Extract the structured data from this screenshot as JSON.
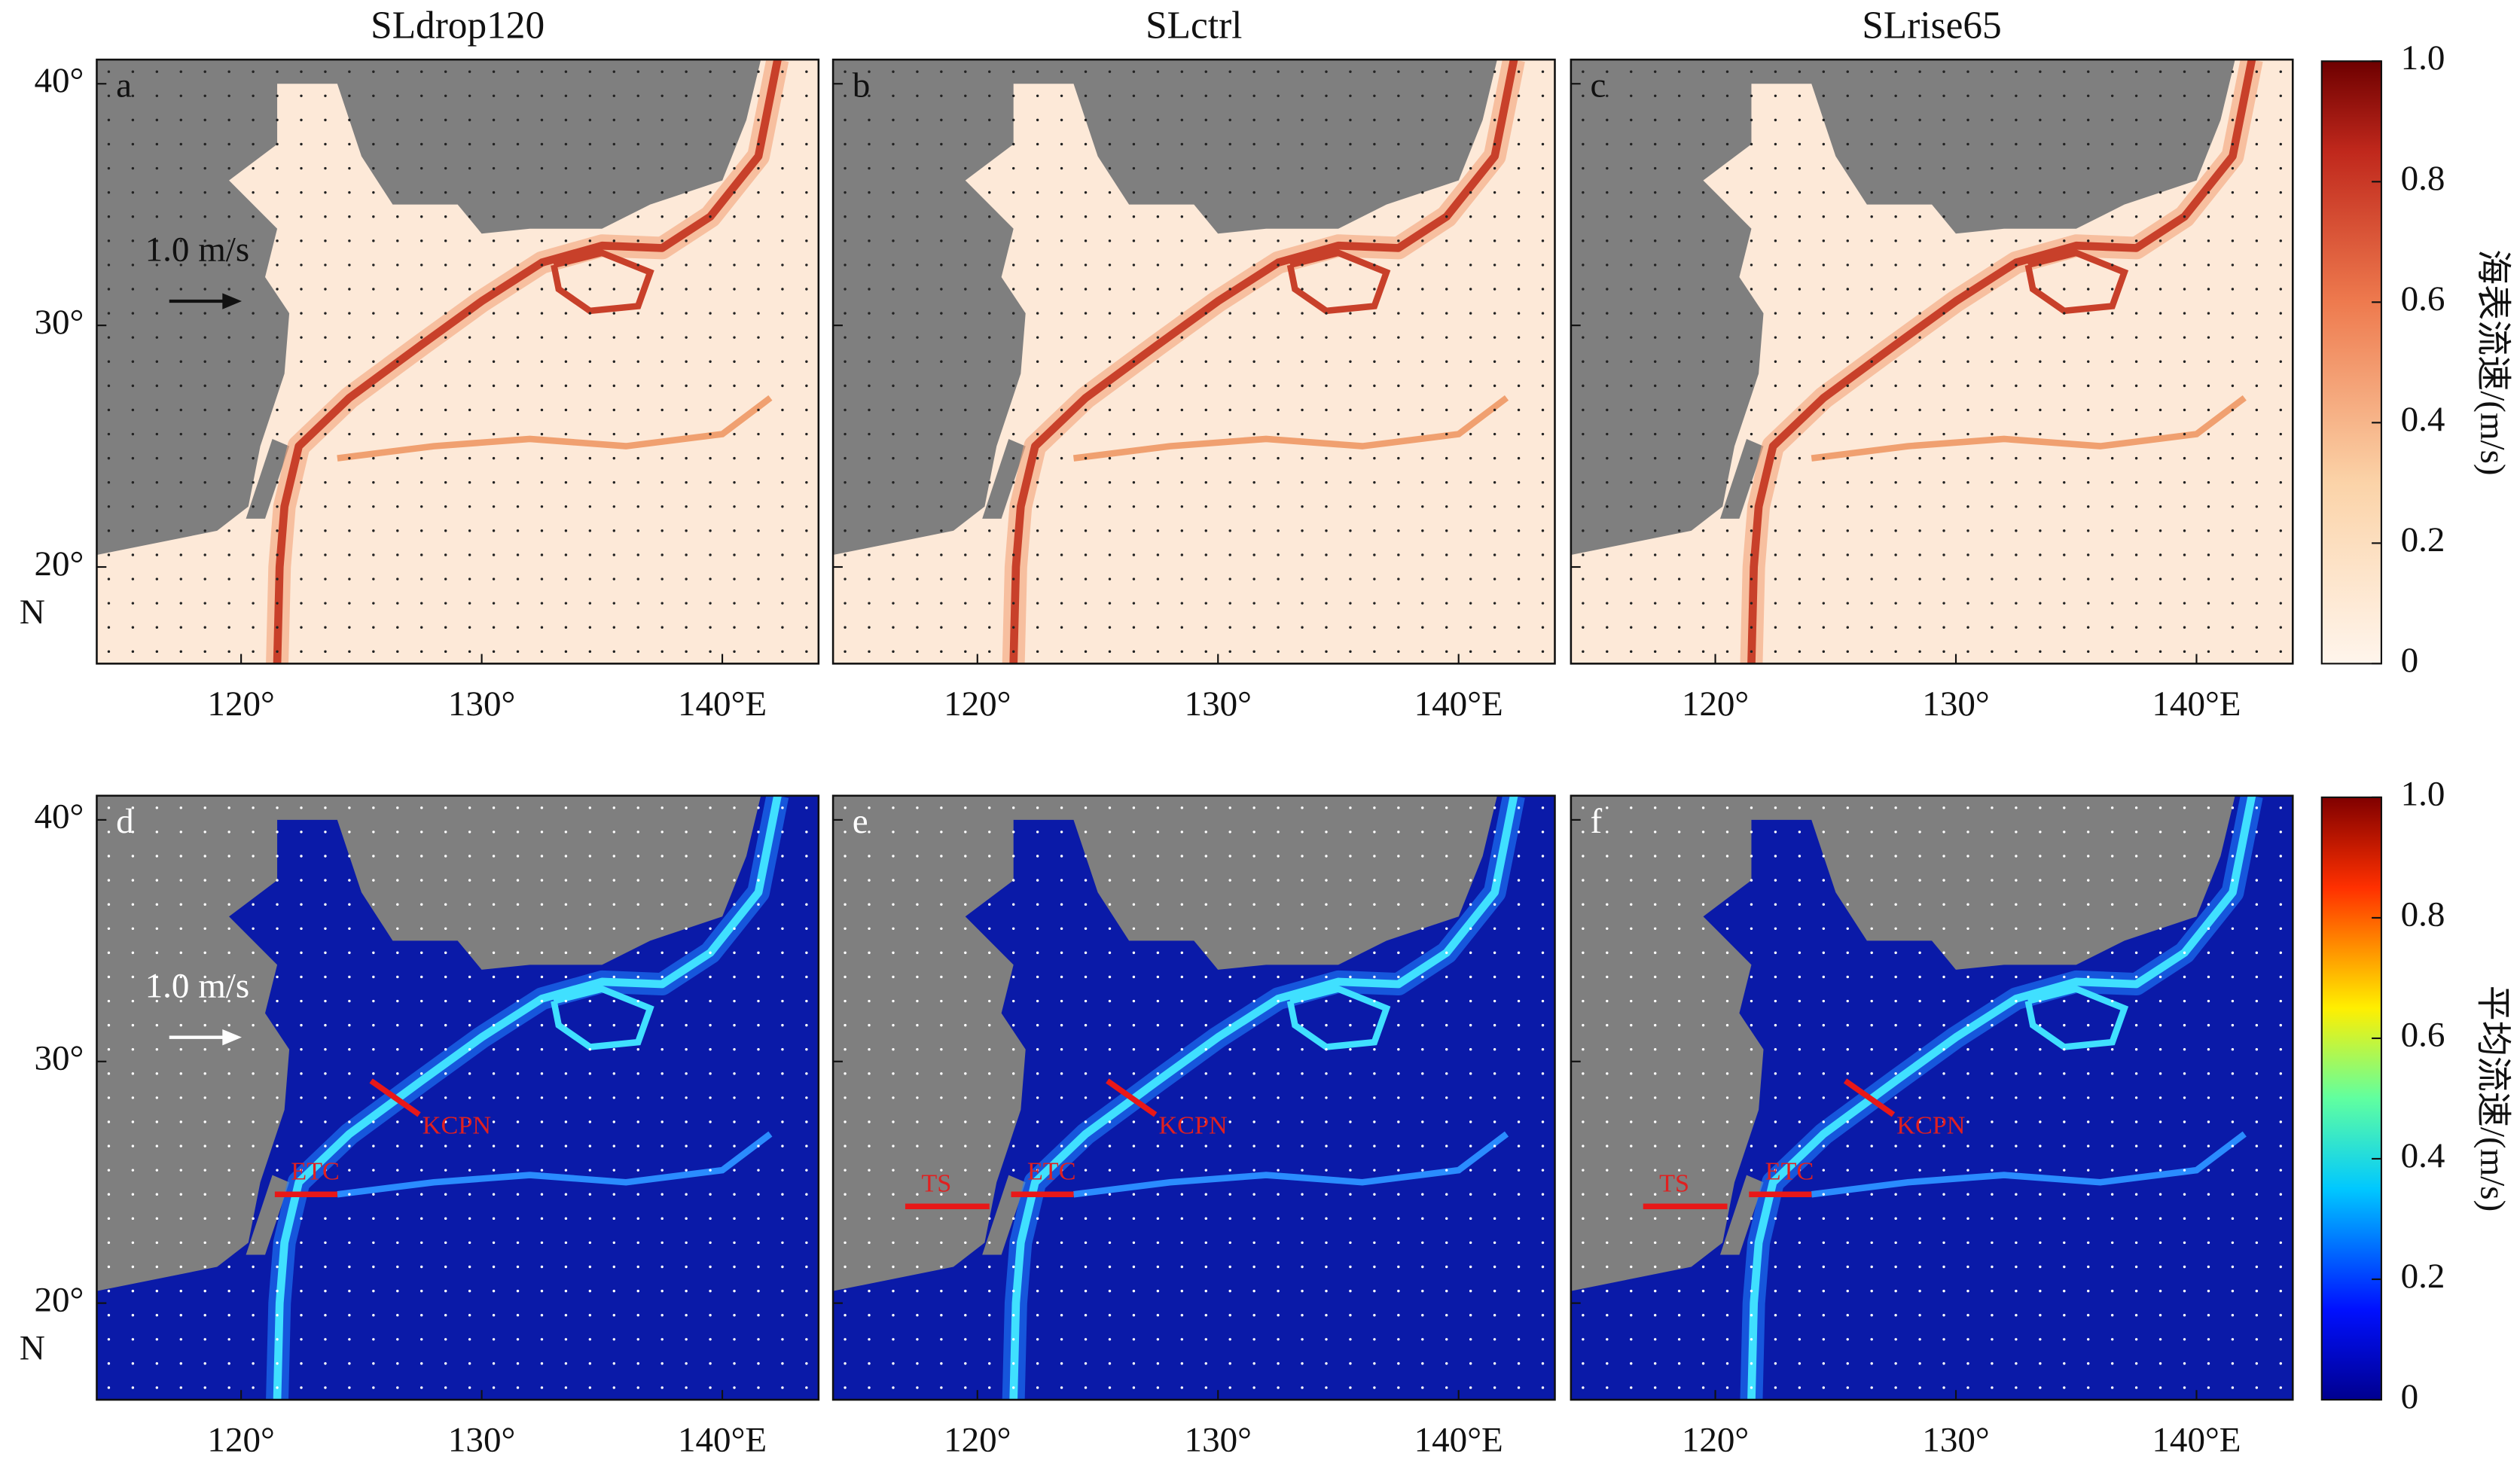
{
  "columns": [
    "SLdrop120",
    "SLctrl",
    "SLrise65"
  ],
  "panel_letters": [
    "a",
    "b",
    "c",
    "d",
    "e",
    "f"
  ],
  "xlim": [
    114,
    144
  ],
  "ylim": [
    16,
    41
  ],
  "lon_ticks": [
    {
      "value": 120,
      "label": "120°"
    },
    {
      "value": 130,
      "label": "130°"
    },
    {
      "value": 140,
      "label": "140°E"
    }
  ],
  "lat_ticks": [
    {
      "value": 20,
      "label": "20°"
    },
    {
      "value": 30,
      "label": "30°"
    },
    {
      "value": 40,
      "label": "40°"
    }
  ],
  "lat_unit": "N",
  "scale_arrow": "1.0 m/s",
  "colorbars": [
    {
      "label": "海表流速/(m/s)",
      "lim": [
        0,
        1
      ],
      "ticks": [
        0,
        0.2,
        0.4,
        0.6,
        0.8,
        {
          "value": 1,
          "label": "1.0"
        }
      ]
    },
    {
      "label": "平均流速/(m/s)",
      "lim": [
        0,
        1
      ],
      "ticks": [
        0,
        0.2,
        0.4,
        0.6,
        0.8,
        {
          "value": 1,
          "label": "1.0"
        }
      ]
    }
  ],
  "sections": [
    [
      "KCPN",
      "ETC"
    ],
    [
      "TS",
      "ETC",
      "KCPN"
    ],
    [
      "TS",
      "ETC",
      "KCPN"
    ]
  ]
}
